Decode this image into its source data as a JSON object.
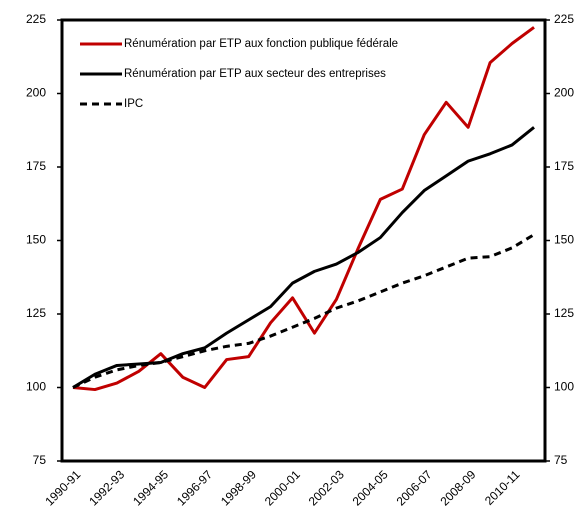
{
  "chart_data": {
    "type": "line",
    "categories": [
      "1990-91",
      null,
      "1992-93",
      null,
      "1994-95",
      null,
      "1996-97",
      null,
      "1998-99",
      null,
      "2000-01",
      null,
      "2002-03",
      null,
      "2004-05",
      null,
      "2006-07",
      null,
      "2008-09",
      null,
      "2010-11",
      null
    ],
    "series": [
      {
        "name": "Rénumération par ETP aux fonction publique fédérale",
        "color": "#c00000",
        "dashed": false,
        "values": [
          100,
          99.3,
          101.5,
          105.5,
          111.5,
          103.5,
          100,
          109.5,
          110.5,
          122,
          130.5,
          118.5,
          130,
          147.5,
          164,
          167.5,
          186,
          197,
          188.5,
          210.5,
          217,
          222.5
        ]
      },
      {
        "name": "Rénumération par ETP aux secteur des entreprises",
        "color": "#000000",
        "dashed": false,
        "values": [
          100,
          104.5,
          107.5,
          108,
          108.5,
          111.5,
          113.5,
          118.5,
          123,
          127.5,
          135.5,
          139.5,
          142,
          146,
          151,
          159.5,
          167,
          172,
          177,
          179.5,
          182.5,
          188.5
        ]
      },
      {
        "name": "IPC",
        "color": "#000000",
        "dashed": true,
        "values": [
          100,
          103.5,
          106,
          107.5,
          108.5,
          110.5,
          112.5,
          114,
          115,
          117.5,
          120.5,
          123.5,
          127,
          129.5,
          132.5,
          135.5,
          138,
          141,
          144,
          144.5,
          147.5,
          152
        ]
      }
    ],
    "ylim": [
      75,
      225
    ],
    "yticks": [
      75,
      100,
      125,
      150,
      175,
      200,
      225
    ],
    "y2lim": [
      75,
      225
    ],
    "y2ticks": [
      75,
      100,
      125,
      150,
      175,
      200,
      225
    ],
    "legend": "upper-left"
  }
}
